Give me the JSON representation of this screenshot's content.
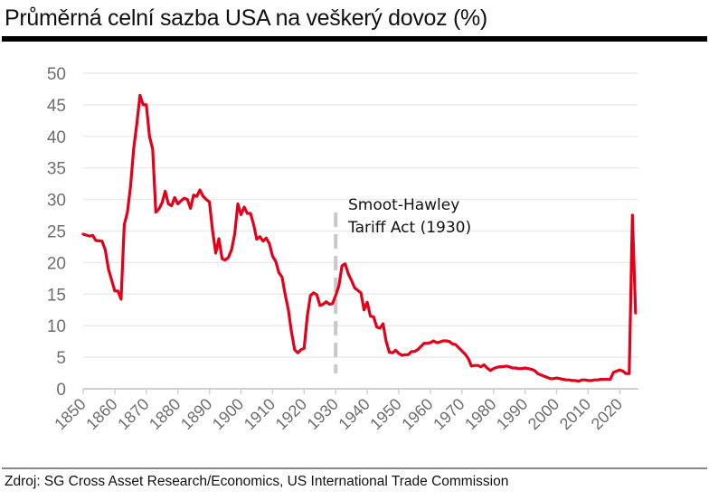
{
  "title": "Průměrná celní sazba USA na veškerý dovoz (%)",
  "source": "Zdroj: SG Cross Asset Research/Economics, US International Trade Commission",
  "colors": {
    "line": "#e2001a",
    "grid": "#ebebeb",
    "axis": "#d0d0d0",
    "marker": "#c8c8c8"
  },
  "chart_data": {
    "type": "line",
    "title": "Průměrná celní sazba USA na veškerý dovoz (%)",
    "xlabel": "",
    "ylabel": "",
    "xlim": [
      1850,
      2026
    ],
    "ylim": [
      0,
      50
    ],
    "yticks": [
      0,
      5,
      10,
      15,
      20,
      25,
      30,
      35,
      40,
      45,
      50
    ],
    "xticks": [
      1850,
      1860,
      1870,
      1880,
      1890,
      1900,
      1910,
      1920,
      1930,
      1940,
      1950,
      1960,
      1970,
      1980,
      1990,
      2000,
      2010,
      2020
    ],
    "grid": true,
    "annotation": {
      "x": 1930,
      "lines": [
        "Smoot-Hawley",
        "Tariff Act (1930)"
      ],
      "style": "dashed-vertical"
    },
    "series": [
      {
        "name": "Průměrná celní sazba",
        "x": [
          1850,
          1852,
          1853,
          1854,
          1856,
          1857,
          1858,
          1860,
          1861,
          1862,
          1863,
          1864,
          1865,
          1866,
          1867,
          1868,
          1869,
          1870,
          1871,
          1872,
          1873,
          1874,
          1875,
          1876,
          1877,
          1878,
          1879,
          1880,
          1881,
          1882,
          1883,
          1884,
          1885,
          1886,
          1887,
          1888,
          1889,
          1890,
          1891,
          1892,
          1893,
          1894,
          1895,
          1896,
          1897,
          1898,
          1899,
          1900,
          1901,
          1902,
          1903,
          1904,
          1905,
          1906,
          1907,
          1908,
          1909,
          1910,
          1911,
          1912,
          1913,
          1914,
          1915,
          1916,
          1917,
          1918,
          1919,
          1920,
          1921,
          1922,
          1923,
          1924,
          1925,
          1926,
          1927,
          1928,
          1929,
          1930,
          1931,
          1932,
          1933,
          1934,
          1935,
          1936,
          1937,
          1938,
          1939,
          1940,
          1941,
          1942,
          1943,
          1944,
          1945,
          1946,
          1947,
          1948,
          1949,
          1950,
          1951,
          1952,
          1953,
          1954,
          1955,
          1956,
          1957,
          1958,
          1959,
          1960,
          1961,
          1962,
          1963,
          1964,
          1965,
          1966,
          1967,
          1968,
          1969,
          1970,
          1971,
          1972,
          1973,
          1974,
          1975,
          1976,
          1977,
          1978,
          1979,
          1980,
          1981,
          1982,
          1983,
          1984,
          1985,
          1986,
          1987,
          1988,
          1989,
          1990,
          1991,
          1992,
          1993,
          1994,
          1995,
          1996,
          1997,
          1998,
          1999,
          2000,
          2001,
          2002,
          2003,
          2004,
          2005,
          2006,
          2007,
          2008,
          2009,
          2010,
          2011,
          2012,
          2013,
          2014,
          2015,
          2016,
          2017,
          2018,
          2019,
          2020,
          2021,
          2022,
          2023,
          2024,
          2025
        ],
        "y": [
          24.5,
          24.2,
          24.3,
          23.5,
          23.4,
          22,
          19,
          15.5,
          15.5,
          14.2,
          26,
          28,
          32,
          38,
          42,
          46.5,
          45,
          45,
          40,
          38,
          28,
          28.5,
          29.5,
          31.3,
          29.3,
          29,
          30.3,
          29.3,
          29.8,
          30.2,
          30,
          28.6,
          30.7,
          30.5,
          31.5,
          30.5,
          30,
          29.6,
          25,
          21.5,
          23.8,
          20.6,
          20.4,
          20.8,
          22,
          24.5,
          29.3,
          27.6,
          28.8,
          27.8,
          27.8,
          26,
          23.7,
          24.1,
          23.4,
          23.9,
          23,
          21,
          20.2,
          18.4,
          17.7,
          14.9,
          12.5,
          9,
          6.2,
          5.7,
          6.2,
          6.4,
          11.5,
          14.8,
          15.2,
          14.9,
          13.2,
          13.4,
          13.8,
          13.4,
          13.5,
          14.8,
          16.3,
          19.5,
          19.8,
          18.2,
          17.2,
          16,
          15.6,
          15.2,
          12.5,
          13.7,
          11.5,
          11.4,
          9.8,
          9.6,
          10.3,
          7.5,
          5.8,
          5.7,
          6.1,
          5.6,
          5.3,
          5.4,
          5.4,
          5.9,
          5.9,
          6.2,
          6.7,
          7.2,
          7.2,
          7.3,
          7.6,
          7.3,
          7.4,
          7.6,
          7.6,
          7.5,
          7.1,
          7.0,
          6.5,
          6.0,
          5.5,
          4.8,
          3.6,
          3.7,
          3.7,
          3.5,
          3.8,
          3.3,
          2.9,
          3.2,
          3.4,
          3.5,
          3.5,
          3.6,
          3.5,
          3.3,
          3.3,
          3.2,
          3.2,
          3.3,
          3.2,
          3.1,
          2.9,
          2.4,
          2.2,
          2.0,
          1.8,
          1.6,
          1.6,
          1.7,
          1.6,
          1.5,
          1.4,
          1.4,
          1.3,
          1.3,
          1.2,
          1.4,
          1.4,
          1.3,
          1.3,
          1.4,
          1.4,
          1.5,
          1.5,
          1.5,
          1.5,
          2.6,
          2.8,
          3.0,
          2.8,
          2.4,
          2.4,
          27.5,
          12
        ]
      }
    ]
  }
}
